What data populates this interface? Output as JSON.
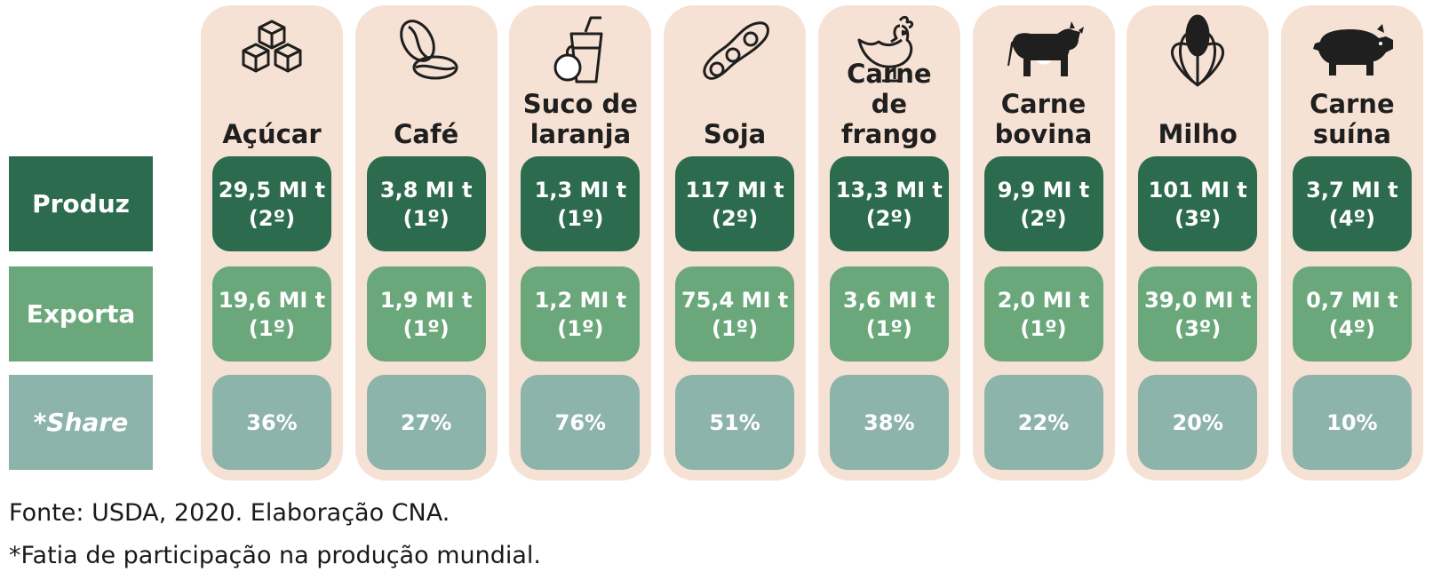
{
  "colors": {
    "produz": "#2c6b4e",
    "exporta": "#6aa87b",
    "share": "#8db4aa",
    "column_bg": "#f6e2d4",
    "icon": "#1f1f1f"
  },
  "row_labels": {
    "produz": "Produz",
    "exporta": "Exporta",
    "share": "*Share"
  },
  "chart_data": {
    "type": "table",
    "rows": [
      "Produz",
      "Exporta",
      "*Share"
    ],
    "columns": [
      {
        "name": "Açúcar",
        "icon": "sugar-cubes-icon",
        "produz_value": "29,5 MI t",
        "produz_rank": "(2º)",
        "exporta_value": "19,6 MI t",
        "exporta_rank": "(1º)",
        "share": "36%"
      },
      {
        "name": "Café",
        "icon": "coffee-beans-icon",
        "produz_value": "3,8 MI t",
        "produz_rank": "(1º)",
        "exporta_value": "1,9 MI t",
        "exporta_rank": "(1º)",
        "share": "27%"
      },
      {
        "name": "Suco de laranja",
        "icon": "orange-juice-icon",
        "produz_value": "1,3 MI t",
        "produz_rank": "(1º)",
        "exporta_value": "1,2 MI t",
        "exporta_rank": "(1º)",
        "share": "76%"
      },
      {
        "name": "Soja",
        "icon": "soybean-pod-icon",
        "produz_value": "117 MI t",
        "produz_rank": "(2º)",
        "exporta_value": "75,4 MI t",
        "exporta_rank": "(1º)",
        "share": "51%"
      },
      {
        "name": "Carne de frango",
        "icon": "chicken-icon",
        "produz_value": "13,3 MI t",
        "produz_rank": "(2º)",
        "exporta_value": "3,6 MI t",
        "exporta_rank": "(1º)",
        "share": "38%"
      },
      {
        "name": "Carne bovina",
        "icon": "cow-icon",
        "produz_value": "9,9 MI t",
        "produz_rank": "(2º)",
        "exporta_value": "2,0 MI t",
        "exporta_rank": "(1º)",
        "share": "22%"
      },
      {
        "name": "Milho",
        "icon": "corn-icon",
        "produz_value": "101 MI t",
        "produz_rank": "(3º)",
        "exporta_value": "39,0 MI t",
        "exporta_rank": "(3º)",
        "share": "20%"
      },
      {
        "name": "Carne suína",
        "icon": "pig-icon",
        "produz_value": "3,7 MI t",
        "produz_rank": "(4º)",
        "exporta_value": "0,7 MI t",
        "exporta_rank": "(4º)",
        "share": "10%"
      }
    ]
  },
  "footnotes": {
    "source": "Fonte: USDA, 2020. Elaboração CNA.",
    "share_note": "*Fatia de participação na produção mundial."
  }
}
